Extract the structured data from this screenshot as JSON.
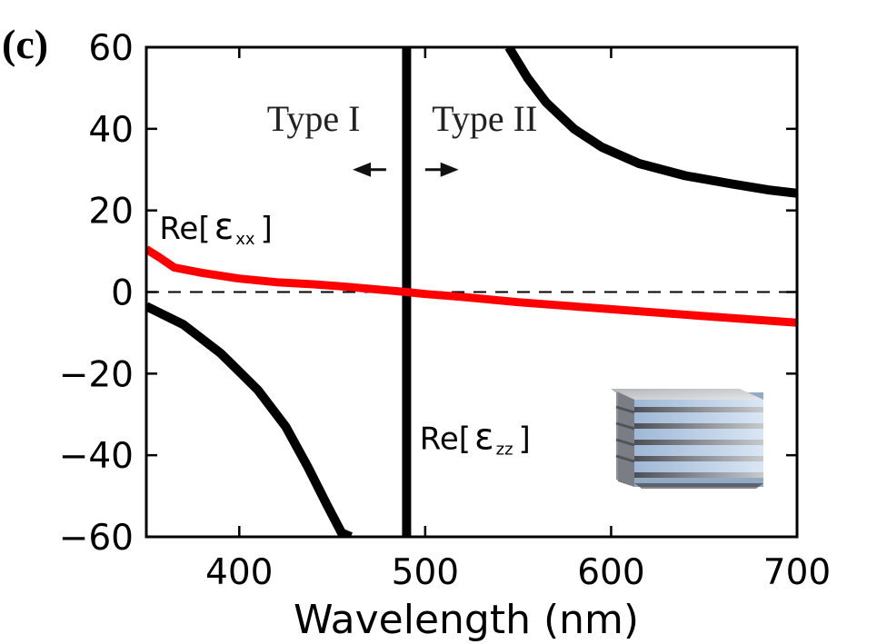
{
  "panel_label": "(c)",
  "chart_data": {
    "type": "line",
    "title": "",
    "xlabel": "Wavelength (nm)",
    "ylabel": "",
    "xlim": [
      350,
      700
    ],
    "ylim": [
      -60,
      60
    ],
    "xticks": [
      400,
      500,
      600,
      700
    ],
    "yticks": [
      60,
      40,
      20,
      0,
      -20,
      -40,
      -60
    ],
    "ytick_labels": [
      "60",
      "40",
      "20",
      "0",
      "−20",
      "−40",
      "−60"
    ],
    "grid": false,
    "zero_line": "dashed",
    "colors": {
      "eps_zz": "#000000",
      "eps_xx": "#ff0000",
      "zero": "#000000"
    },
    "series": [
      {
        "name": "Re[εzz] (below resonance)",
        "color": "#000000",
        "x": [
          350,
          370,
          390,
          410,
          425,
          437,
          447,
          455,
          460
        ],
        "y": [
          -3.5,
          -8,
          -15,
          -24,
          -33,
          -43,
          -52,
          -59,
          -60
        ]
      },
      {
        "name": "Re[εzz] (resonance)",
        "color": "#000000",
        "x": [
          490,
          490
        ],
        "y": [
          -60,
          60
        ]
      },
      {
        "name": "Re[εzz] (above resonance)",
        "color": "#000000",
        "x": [
          545,
          555,
          565,
          580,
          595,
          615,
          640,
          665,
          685,
          700
        ],
        "y": [
          60,
          52.5,
          46.5,
          40,
          35.5,
          31.5,
          28.5,
          26.5,
          25,
          24.2
        ]
      },
      {
        "name": "Re[εxx]",
        "color": "#ff0000",
        "x": [
          350,
          357,
          365,
          380,
          400,
          420,
          440,
          460,
          480,
          490,
          500,
          520,
          550,
          600,
          650,
          700
        ],
        "y": [
          10.5,
          8.5,
          6,
          4.7,
          3.3,
          2.4,
          1.9,
          1.2,
          0.4,
          0,
          -0.5,
          -1.2,
          -2.5,
          -4.2,
          -5.9,
          -7.5
        ]
      }
    ],
    "annotations": [
      {
        "id": "type1",
        "text": "Type I",
        "x": 440,
        "y": 39.5,
        "font": "serif"
      },
      {
        "id": "type2",
        "text": "Type II",
        "x": 532,
        "y": 39.5,
        "font": "serif"
      },
      {
        "id": "eps-xx",
        "text": "Re[",
        "sym": "ε",
        "sub": "xx",
        "close": "]",
        "x": 357,
        "y": 13
      },
      {
        "id": "eps-zz",
        "text": "Re[",
        "sym": "ε",
        "sub": "zz",
        "close": "]",
        "x": 497,
        "y": -38.5
      }
    ],
    "arrows": [
      {
        "id": "arrow-type1",
        "from_x": 479,
        "to_x": 461,
        "y": 30
      },
      {
        "id": "arrow-type2",
        "from_x": 500,
        "to_x": 518,
        "y": 30
      }
    ],
    "inset": "multilayer-stack"
  }
}
